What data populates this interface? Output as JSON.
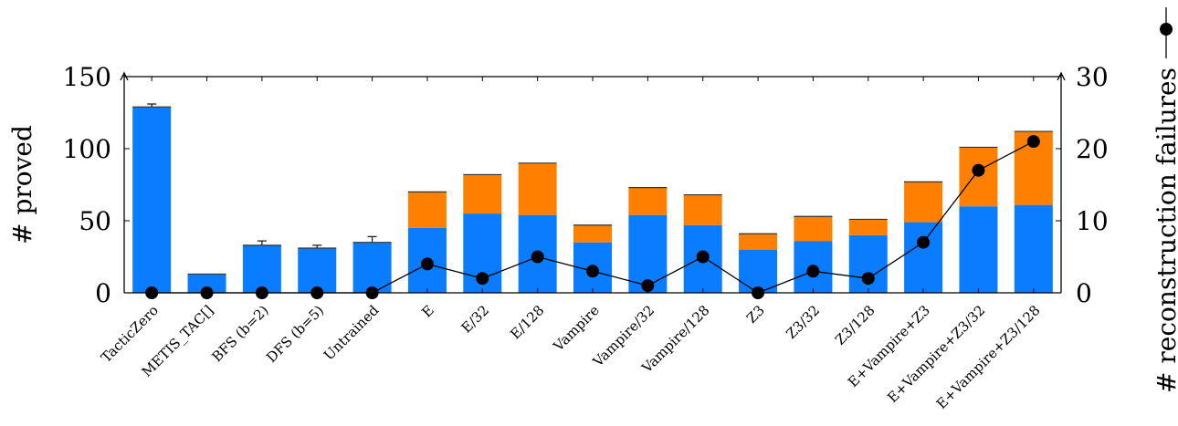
{
  "chart_data": {
    "type": "bar",
    "title": "",
    "categories": [
      "TacticZero",
      "METIS_TAC[]",
      "BFS (b=2)",
      "DFS (b=5)",
      "Untrained",
      "E",
      "E/32",
      "E/128",
      "Vampire",
      "Vampire/32",
      "Vampire/128",
      "Z3",
      "Z3/32",
      "Z3/128",
      "E+Vampire+Z3",
      "E+Vampire+Z3/32",
      "E+Vampire+Z3/128"
    ],
    "series": [
      {
        "values": [
          129,
          13,
          33,
          31,
          35,
          45,
          55,
          54,
          35,
          54,
          47,
          30,
          36,
          40,
          49,
          60,
          61
        ],
        "color": "#0a7cff"
      },
      {
        "values": [
          0,
          0,
          0,
          0,
          0,
          25,
          27,
          36,
          12,
          19,
          21,
          11,
          17,
          11,
          28,
          41,
          51
        ],
        "color": "#ff8000"
      },
      {
        "name": "# reconstruction failures",
        "type": "line",
        "axis": "right",
        "values": [
          0,
          0,
          0,
          0,
          0,
          4,
          2,
          5,
          3,
          1,
          5,
          0,
          3,
          2,
          7,
          17,
          21
        ],
        "color": "#000000"
      }
    ],
    "error_bars_top": [
      131,
      null,
      36,
      33,
      39,
      null,
      null,
      null,
      null,
      null,
      null,
      null,
      null,
      null,
      null,
      null,
      null
    ],
    "ylabel": "# proved",
    "ylabel_right": "# reconstruction failures",
    "ylim": [
      0,
      150
    ],
    "yticks": [
      0,
      50,
      100,
      150
    ],
    "ylim_right": [
      0,
      30
    ],
    "yticks_right": [
      0,
      10,
      20,
      30
    ],
    "grid": false,
    "legend": "top-right"
  }
}
